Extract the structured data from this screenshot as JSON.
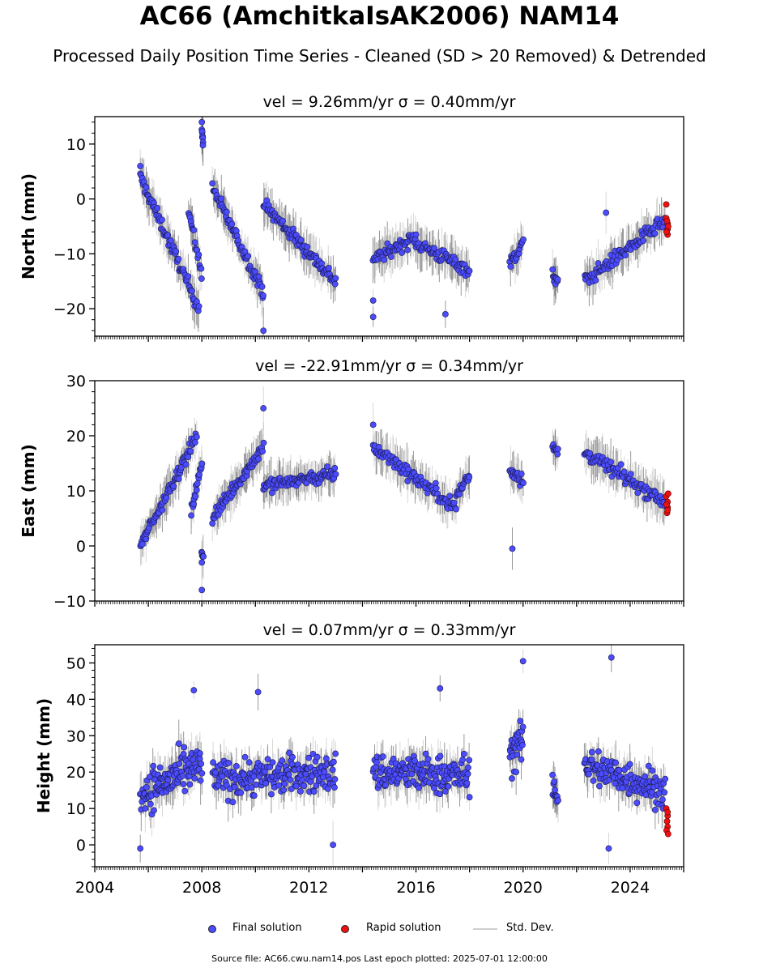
{
  "title": "AC66 (AmchitkaIsAK2006) NAM14",
  "subtitle": "Processed Daily Position Time Series - Cleaned (SD > 20 Removed) & Detrended",
  "footer": "Source file: AC66.cwu.nam14.pos  Last epoch plotted: 2025-07-01 12:00:00",
  "colors": {
    "final": "#4b4bff",
    "rapid": "#ee1111",
    "stddev": "#bdbdbd",
    "stddev_dark": "#555555"
  },
  "legend": {
    "final": "Final solution",
    "rapid": "Rapid solution",
    "stddev": "Std. Dev."
  },
  "chart_data": [
    {
      "type": "scatter",
      "title": "vel = 9.26mm/yr   σ = 0.40mm/yr",
      "ylabel": "North (mm)",
      "xlim": [
        2004,
        2026
      ],
      "ylim": [
        -25,
        15
      ],
      "yticks": [
        -20,
        -10,
        0,
        10
      ],
      "ytick_labels": [
        "−20",
        "−10",
        "0",
        "10"
      ],
      "segments": [
        {
          "x0": 2005.7,
          "x1": 2007.9,
          "y0": 4,
          "y1": -20,
          "spread": 2.0,
          "n": 80
        },
        {
          "x0": 2007.5,
          "x1": 2008.0,
          "y0": -2,
          "y1": -14,
          "spread": 2.0,
          "n": 18
        },
        {
          "x0": 2008.0,
          "x1": 2008.05,
          "y0": 13,
          "y1": 10,
          "spread": 1.5,
          "n": 8
        },
        {
          "x0": 2008.4,
          "x1": 2010.3,
          "y0": 2,
          "y1": -17,
          "spread": 2.0,
          "n": 70
        },
        {
          "x0": 2010.3,
          "x1": 2013.0,
          "y0": -1,
          "y1": -15,
          "spread": 2.2,
          "n": 95
        },
        {
          "x0": 2014.4,
          "x1": 2016.0,
          "y0": -11,
          "y1": -7,
          "spread": 2.0,
          "n": 55
        },
        {
          "x0": 2016.0,
          "x1": 2018.0,
          "y0": -8,
          "y1": -13,
          "spread": 2.2,
          "n": 65
        },
        {
          "x0": 2019.5,
          "x1": 2020.0,
          "y0": -12,
          "y1": -8,
          "spread": 2.2,
          "n": 20
        },
        {
          "x0": 2021.1,
          "x1": 2021.3,
          "y0": -14,
          "y1": -15,
          "spread": 2.0,
          "n": 10
        },
        {
          "x0": 2022.3,
          "x1": 2025.3,
          "y0": -15,
          "y1": -4,
          "spread": 2.2,
          "n": 90
        }
      ],
      "outliers": [
        [
          2005.7,
          6
        ],
        [
          2010.3,
          -24
        ],
        [
          2014.4,
          -21.5
        ],
        [
          2014.4,
          -18.5
        ],
        [
          2017.1,
          -21
        ],
        [
          2023.1,
          -2.5
        ],
        [
          2008.0,
          14
        ]
      ],
      "rapid": [
        [
          2025.35,
          -1
        ],
        [
          2025.35,
          -3.5
        ],
        [
          2025.4,
          -4.5
        ],
        [
          2025.4,
          -5.5
        ],
        [
          2025.4,
          -6.5
        ],
        [
          2025.38,
          -4
        ],
        [
          2025.42,
          -5
        ],
        [
          2025.36,
          -6
        ]
      ]
    },
    {
      "type": "scatter",
      "title": "vel = -22.91mm/yr   σ = 0.34mm/yr",
      "ylabel": "East (mm)",
      "xlim": [
        2004,
        2026
      ],
      "ylim": [
        -10,
        30
      ],
      "yticks": [
        -10,
        0,
        10,
        20,
        30
      ],
      "ytick_labels": [
        "−10",
        "0",
        "10",
        "20",
        "30"
      ],
      "segments": [
        {
          "x0": 2005.7,
          "x1": 2007.8,
          "y0": 0,
          "y1": 20,
          "spread": 2.0,
          "n": 80
        },
        {
          "x0": 2007.6,
          "x1": 2008.0,
          "y0": 6,
          "y1": 15,
          "spread": 2.0,
          "n": 18
        },
        {
          "x0": 2008.0,
          "x1": 2008.05,
          "y0": -1,
          "y1": -2,
          "spread": 1.0,
          "n": 6
        },
        {
          "x0": 2008.4,
          "x1": 2010.3,
          "y0": 5,
          "y1": 18,
          "spread": 2.0,
          "n": 70
        },
        {
          "x0": 2010.3,
          "x1": 2013.0,
          "y0": 11,
          "y1": 13,
          "spread": 2.2,
          "n": 95
        },
        {
          "x0": 2014.4,
          "x1": 2017.5,
          "y0": 18,
          "y1": 7,
          "spread": 2.2,
          "n": 90
        },
        {
          "x0": 2017.5,
          "x1": 2018.0,
          "y0": 9,
          "y1": 13,
          "spread": 2.0,
          "n": 20
        },
        {
          "x0": 2019.5,
          "x1": 2020.0,
          "y0": 14,
          "y1": 12,
          "spread": 2.5,
          "n": 20
        },
        {
          "x0": 2021.1,
          "x1": 2021.3,
          "y0": 18,
          "y1": 17,
          "spread": 2.0,
          "n": 10
        },
        {
          "x0": 2022.3,
          "x1": 2025.3,
          "y0": 17,
          "y1": 8,
          "spread": 2.2,
          "n": 90
        }
      ],
      "outliers": [
        [
          2008.0,
          -8
        ],
        [
          2010.3,
          25
        ],
        [
          2019.6,
          -0.5
        ],
        [
          2014.4,
          22
        ],
        [
          2008.0,
          -3
        ]
      ],
      "rapid": [
        [
          2025.35,
          9
        ],
        [
          2025.4,
          8
        ],
        [
          2025.4,
          7
        ],
        [
          2025.38,
          6
        ],
        [
          2025.42,
          9.5
        ],
        [
          2025.36,
          7.5
        ],
        [
          2025.4,
          6.5
        ]
      ]
    },
    {
      "type": "scatter",
      "title": "vel = 0.07mm/yr   σ = 0.33mm/yr",
      "ylabel": "Height (mm)",
      "xlim": [
        2004,
        2026
      ],
      "ylim": [
        -6,
        55
      ],
      "yticks": [
        0,
        10,
        20,
        30,
        40,
        50
      ],
      "ytick_labels": [
        "0",
        "10",
        "20",
        "30",
        "40",
        "50"
      ],
      "xticks": [
        2004,
        2008,
        2012,
        2016,
        2020,
        2024
      ],
      "xtick_labels": [
        "2004",
        "2008",
        "2012",
        "2016",
        "2020",
        "2024"
      ],
      "segments": [
        {
          "x0": 2005.7,
          "x1": 2008.0,
          "y0": 14,
          "y1": 22,
          "spread": 10,
          "n": 110
        },
        {
          "x0": 2008.4,
          "x1": 2013.0,
          "y0": 18,
          "y1": 20,
          "spread": 9,
          "n": 190
        },
        {
          "x0": 2014.4,
          "x1": 2018.0,
          "y0": 20,
          "y1": 19,
          "spread": 9,
          "n": 160
        },
        {
          "x0": 2019.5,
          "x1": 2020.0,
          "y0": 25,
          "y1": 28,
          "spread": 10,
          "n": 30
        },
        {
          "x0": 2021.1,
          "x1": 2021.3,
          "y0": 16,
          "y1": 14,
          "spread": 7,
          "n": 12
        },
        {
          "x0": 2022.3,
          "x1": 2025.3,
          "y0": 22,
          "y1": 15,
          "spread": 9,
          "n": 130
        }
      ],
      "outliers": [
        [
          2005.7,
          -1
        ],
        [
          2007.7,
          42.5
        ],
        [
          2010.1,
          42
        ],
        [
          2016.9,
          43
        ],
        [
          2020.0,
          50.5
        ],
        [
          2023.3,
          51.5
        ],
        [
          2023.2,
          -1
        ],
        [
          2012.9,
          0
        ]
      ],
      "rapid": [
        [
          2025.35,
          10
        ],
        [
          2025.4,
          8
        ],
        [
          2025.38,
          6.5
        ],
        [
          2025.4,
          5
        ],
        [
          2025.36,
          4
        ],
        [
          2025.42,
          3
        ],
        [
          2025.4,
          9
        ]
      ]
    }
  ]
}
